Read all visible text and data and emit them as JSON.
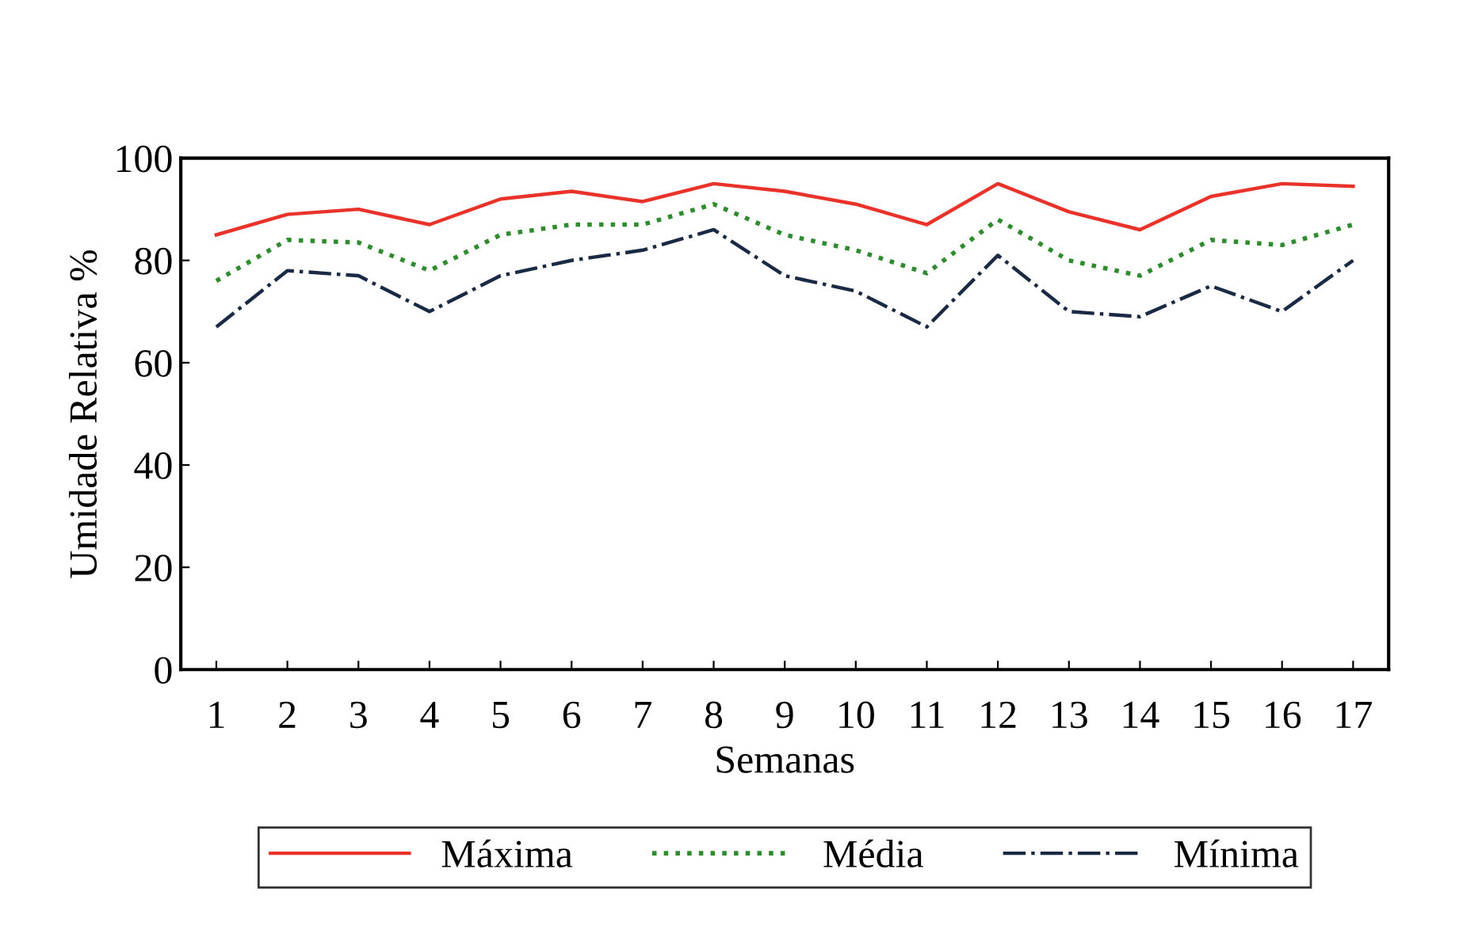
{
  "chart_data": {
    "type": "line",
    "xlabel": "Semanas",
    "ylabel": "Umidade Relativa %",
    "categories": [
      "1",
      "2",
      "3",
      "4",
      "5",
      "6",
      "7",
      "8",
      "9",
      "10",
      "11",
      "12",
      "13",
      "14",
      "15",
      "16",
      "17"
    ],
    "series": [
      {
        "name": "Máxima",
        "color": "#e8322a",
        "line_style": "solid",
        "values": [
          85,
          89,
          90,
          87,
          92,
          93.5,
          91.5,
          95,
          93.5,
          91,
          87,
          95,
          89.5,
          86,
          92.5,
          95,
          94.5
        ]
      },
      {
        "name": "Média",
        "color": "#2e8b2e",
        "line_style": "dotted",
        "values": [
          76,
          84,
          83.5,
          78,
          85,
          87,
          87,
          91,
          85,
          82,
          77.5,
          88,
          80,
          77,
          84,
          83,
          87
        ]
      },
      {
        "name": "Mínima",
        "color": "#1a2a44",
        "line_style": "dashdot",
        "values": [
          67,
          78,
          77,
          70,
          77,
          80,
          82,
          86,
          77,
          74,
          67,
          81,
          70,
          69,
          75,
          70,
          80
        ]
      }
    ],
    "ylim": [
      0,
      100
    ],
    "yticks": [
      0,
      20,
      40,
      60,
      80,
      100
    ],
    "grid": false,
    "legend": "bottom",
    "marker": "none"
  }
}
